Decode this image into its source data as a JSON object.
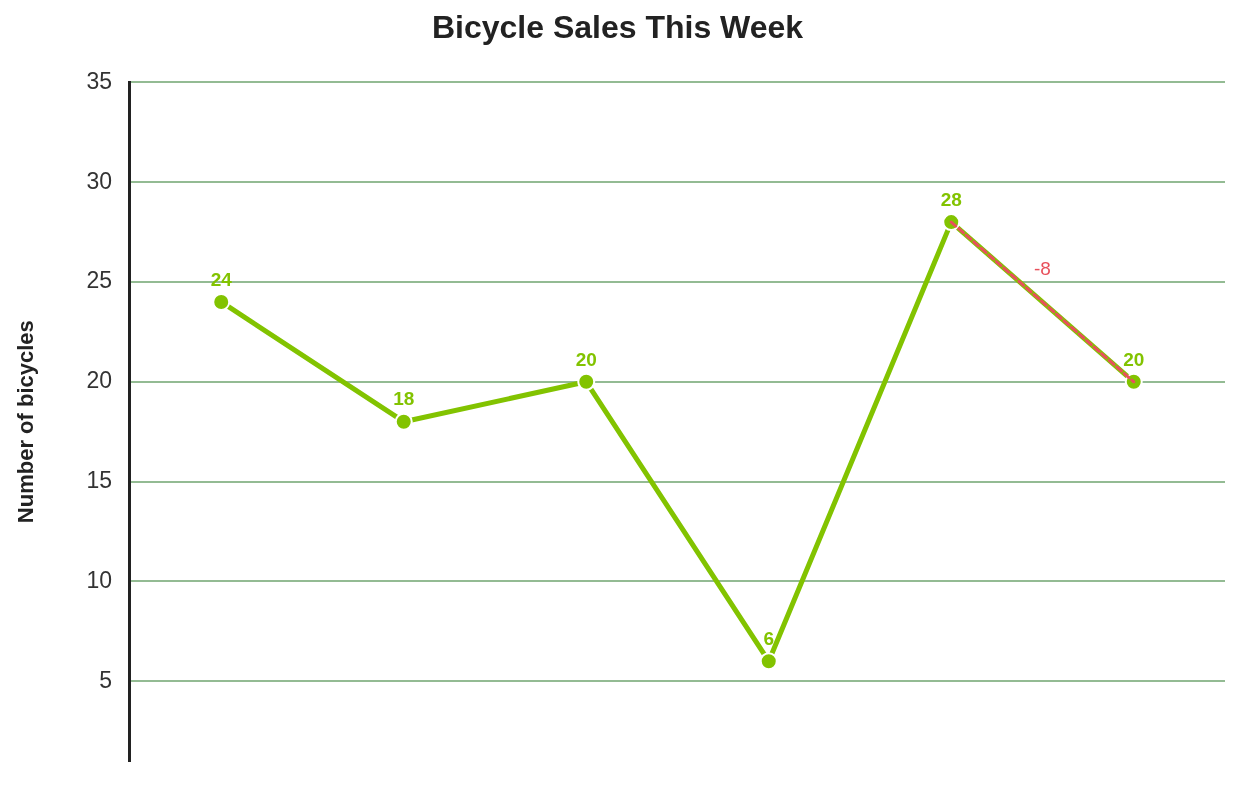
{
  "chart_data": {
    "type": "line",
    "title": "Bicycle Sales This Week",
    "ylabel": "Number of bicycles",
    "categories": [
      null,
      null,
      null,
      null,
      null,
      null
    ],
    "series": [
      {
        "color": "#82c300",
        "values": [
          24,
          18,
          20,
          6,
          28,
          20
        ],
        "value_labels": [
          "24",
          "18",
          "20",
          "6",
          "28",
          "20"
        ]
      },
      {
        "color": "#e8505b",
        "line_style": "dashed",
        "marker": "none",
        "values": [
          null,
          null,
          null,
          null,
          28,
          20
        ]
      }
    ],
    "ylim": [
      1,
      35
    ],
    "yticks": [
      5,
      10,
      15,
      20,
      25,
      30,
      35
    ],
    "grid": "y",
    "legend": false,
    "marker": "circle",
    "annotations": [
      "-8"
    ]
  }
}
